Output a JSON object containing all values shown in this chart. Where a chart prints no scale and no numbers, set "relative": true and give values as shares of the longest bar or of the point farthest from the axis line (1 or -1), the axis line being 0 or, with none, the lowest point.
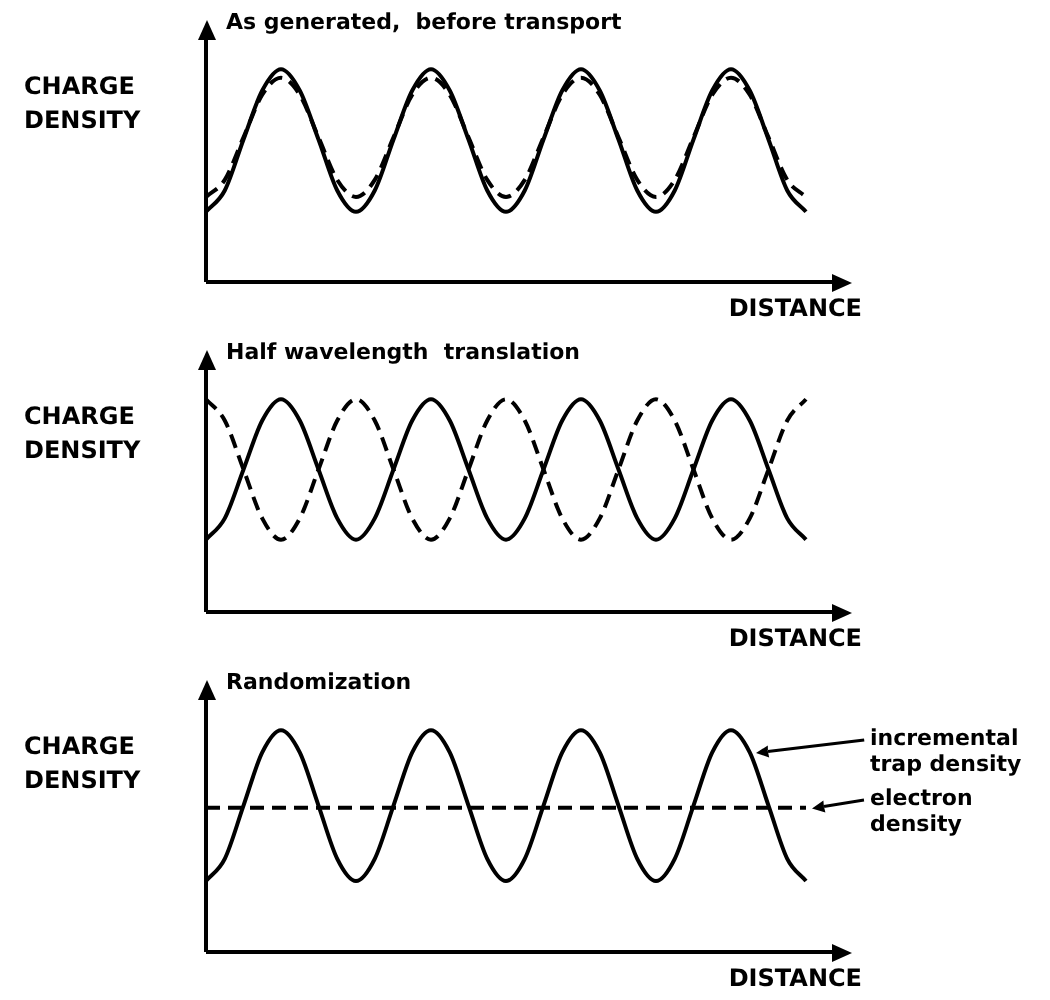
{
  "chart_data": [
    {
      "type": "line",
      "title": "As generated,  before transport",
      "xlabel": "DISTANCE",
      "ylabel": "CHARGE DENSITY",
      "relative": true,
      "categories": [
        null,
        null,
        null,
        null,
        null,
        null,
        null,
        null,
        null,
        null,
        null,
        null,
        null,
        null,
        null,
        null,
        null,
        null,
        null,
        null,
        null,
        null,
        null,
        null,
        null,
        null,
        null,
        null,
        null,
        null,
        null,
        null,
        null
      ],
      "series": [
        {
          "color": "#000000",
          "line_style": "solid",
          "values": [
            0.33,
            0.43,
            0.67,
            0.9,
            1,
            0.9,
            0.67,
            0.43,
            0.33,
            0.43,
            0.67,
            0.9,
            1,
            0.9,
            0.67,
            0.43,
            0.33,
            0.43,
            0.67,
            0.9,
            1,
            0.9,
            0.67,
            0.43,
            0.33,
            0.43,
            0.67,
            0.9,
            1,
            0.9,
            0.67,
            0.43,
            0.33
          ]
        },
        {
          "color": "#000000",
          "line_style": "dashed",
          "values": [
            0.4,
            0.48,
            0.68,
            0.88,
            0.96,
            0.88,
            0.68,
            0.48,
            0.4,
            0.48,
            0.68,
            0.88,
            0.96,
            0.88,
            0.68,
            0.48,
            0.4,
            0.48,
            0.68,
            0.88,
            0.96,
            0.88,
            0.68,
            0.48,
            0.4,
            0.48,
            0.68,
            0.88,
            0.96,
            0.88,
            0.68,
            0.48,
            0.4
          ]
        }
      ]
    },
    {
      "type": "line",
      "title": "Half wavelength  translation",
      "xlabel": "DISTANCE",
      "ylabel": "CHARGE DENSITY",
      "relative": true,
      "categories": [
        null,
        null,
        null,
        null,
        null,
        null,
        null,
        null,
        null,
        null,
        null,
        null,
        null,
        null,
        null,
        null,
        null,
        null,
        null,
        null,
        null,
        null,
        null,
        null,
        null,
        null,
        null,
        null,
        null,
        null,
        null,
        null,
        null
      ],
      "series": [
        {
          "color": "#000000",
          "line_style": "solid",
          "values": [
            0.34,
            0.44,
            0.67,
            0.9,
            1,
            0.9,
            0.67,
            0.44,
            0.34,
            0.44,
            0.67,
            0.9,
            1,
            0.9,
            0.67,
            0.44,
            0.34,
            0.44,
            0.67,
            0.9,
            1,
            0.9,
            0.67,
            0.44,
            0.34,
            0.44,
            0.67,
            0.9,
            1,
            0.9,
            0.67,
            0.44,
            0.34
          ]
        },
        {
          "color": "#000000",
          "line_style": "dashed",
          "values": [
            1,
            0.9,
            0.67,
            0.44,
            0.34,
            0.44,
            0.67,
            0.9,
            1,
            0.9,
            0.67,
            0.44,
            0.34,
            0.44,
            0.67,
            0.9,
            1,
            0.9,
            0.67,
            0.44,
            0.34,
            0.44,
            0.67,
            0.9,
            1,
            0.9,
            0.67,
            0.44,
            0.34,
            0.44,
            0.67,
            0.9,
            1
          ]
        }
      ]
    },
    {
      "type": "line",
      "title": "Randomization",
      "xlabel": "DISTANCE",
      "ylabel": "CHARGE DENSITY",
      "relative": true,
      "legend": "right",
      "categories": [
        null,
        null,
        null,
        null,
        null,
        null,
        null,
        null,
        null,
        null,
        null,
        null,
        null,
        null,
        null,
        null,
        null,
        null,
        null,
        null,
        null,
        null,
        null,
        null,
        null,
        null,
        null,
        null,
        null,
        null,
        null,
        null,
        null
      ],
      "series": [
        {
          "name": "incremental trap density",
          "color": "#000000",
          "line_style": "solid",
          "values": [
            0.32,
            0.42,
            0.66,
            0.9,
            1,
            0.9,
            0.66,
            0.42,
            0.32,
            0.42,
            0.66,
            0.9,
            1,
            0.9,
            0.66,
            0.42,
            0.32,
            0.42,
            0.66,
            0.9,
            1,
            0.9,
            0.66,
            0.42,
            0.32,
            0.42,
            0.66,
            0.9,
            1,
            0.9,
            0.66,
            0.42,
            0.32
          ]
        },
        {
          "name": "electron density",
          "color": "#000000",
          "line_style": "dashed",
          "values": [
            0.65,
            0.65,
            0.65,
            0.65,
            0.65,
            0.65,
            0.65,
            0.65,
            0.65,
            0.65,
            0.65,
            0.65,
            0.65,
            0.65,
            0.65,
            0.65,
            0.65,
            0.65,
            0.65,
            0.65,
            0.65,
            0.65,
            0.65,
            0.65,
            0.65,
            0.65,
            0.65,
            0.65,
            0.65,
            0.65,
            0.65,
            0.65,
            0.65
          ]
        }
      ]
    }
  ]
}
